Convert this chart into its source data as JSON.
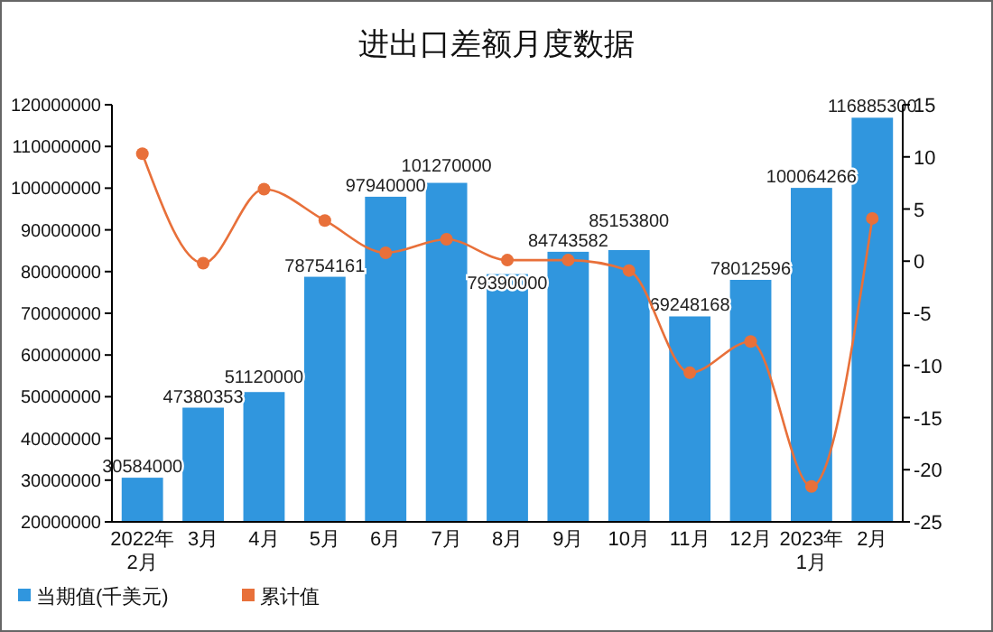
{
  "chart_data": {
    "type": "bar",
    "title": "进出口差额月度数据",
    "categories": [
      "2022年\n2月",
      "3月",
      "4月",
      "5月",
      "6月",
      "7月",
      "8月",
      "9月",
      "10月",
      "11月",
      "12月",
      "2023年\n1月",
      "2月"
    ],
    "series": [
      {
        "name": "当期值(千美元)",
        "color": "#3096de",
        "values": [
          30584000,
          47380353,
          51120000,
          78754161,
          97940000,
          101270000,
          79390000,
          84743582,
          85153800,
          69248168,
          78012596,
          100064266,
          116885300
        ],
        "value_labels": [
          "30584000",
          "47380353",
          "51120000",
          "78754161",
          "97940000",
          "101270000",
          "79390000",
          "84743582",
          "85153800",
          "69248168",
          "78012596",
          "100064266",
          "116885300"
        ]
      },
      {
        "name": "累计值",
        "type": "line",
        "axis": "y2",
        "color": "#e8703a",
        "values": [
          10.3,
          -0.2,
          6.9,
          3.9,
          0.8,
          2.1,
          0.1,
          0.1,
          -0.9,
          -10.7,
          -7.7,
          -21.6,
          4.1
        ]
      }
    ],
    "ylim": [
      20000000,
      120000000
    ],
    "yticks": [
      20000000,
      30000000,
      40000000,
      50000000,
      60000000,
      70000000,
      80000000,
      90000000,
      100000000,
      110000000,
      120000000
    ],
    "y2lim": [
      -25,
      15
    ],
    "y2ticks": [
      -25,
      -20,
      -15,
      -10,
      -5,
      0,
      5,
      10,
      15
    ],
    "marker": "circle",
    "legend": "bottom left",
    "grid": false
  }
}
